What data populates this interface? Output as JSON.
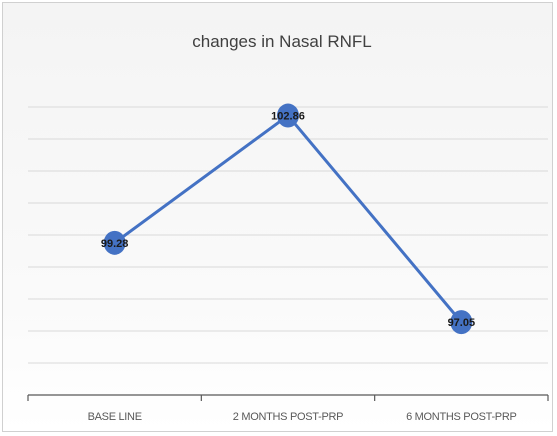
{
  "chart_data": {
    "type": "line",
    "title": "changes in Nasal RNFL",
    "categories": [
      "BASE LINE",
      "2 MONTHS POST-PRP",
      "6 MONTHS POST-PRP"
    ],
    "series": [
      {
        "values": [
          99.28,
          102.86,
          97.05
        ],
        "data_labels": [
          "99.28",
          "102.86",
          "97.05"
        ]
      }
    ],
    "xlabel": "",
    "ylabel": "",
    "ylim": [
      95,
      104
    ],
    "grid": true,
    "legend": "none",
    "colors": {
      "line": "#4472c4",
      "marker": "#4472c4",
      "grid": "#d9d9d9",
      "axis": "#595959"
    }
  }
}
